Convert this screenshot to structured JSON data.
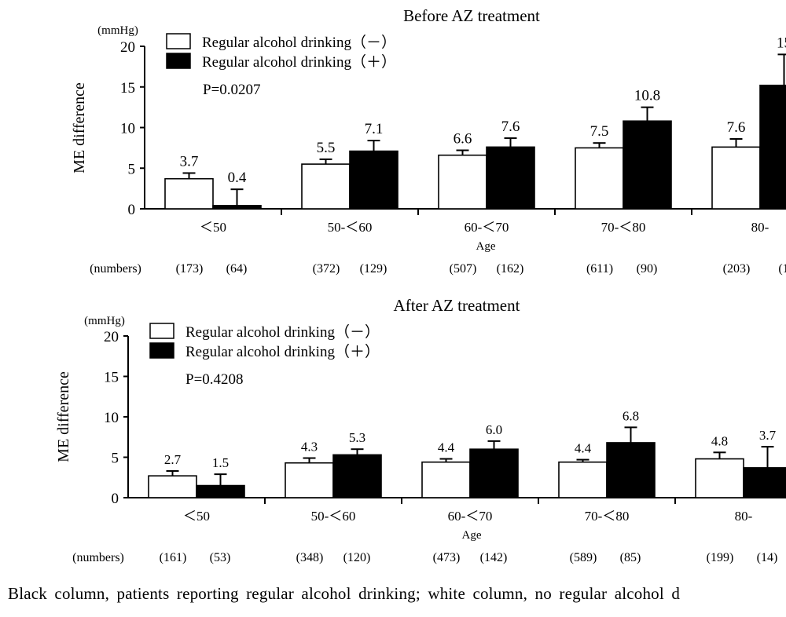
{
  "chart_data": [
    {
      "type": "bar",
      "title": "Before AZ treatment",
      "unit": "(mmHg)",
      "ylabel": "ME difference",
      "xlabel": "Age",
      "ylim": [
        0,
        20
      ],
      "yticks": [
        "0",
        "5",
        "10",
        "15",
        "20"
      ],
      "categories": [
        "＜50",
        "50-＜60",
        "60-＜70",
        "70-＜80",
        "80-"
      ],
      "series": [
        {
          "name": "Regular alcohol drinking（－）",
          "color": "#ffffff",
          "values": [
            3.7,
            5.5,
            6.6,
            7.5,
            7.6
          ],
          "labels": [
            "3.7",
            "5.5",
            "6.6",
            "7.5",
            "7.6"
          ],
          "errors": [
            0.7,
            0.6,
            0.6,
            0.6,
            1.0
          ],
          "numbers": [
            "(173)",
            "(372)",
            "(507)",
            "(611)",
            "(203)"
          ]
        },
        {
          "name": "Regular alcohol drinking（＋）",
          "color": "#000000",
          "values": [
            0.4,
            7.1,
            7.6,
            10.8,
            15.2
          ],
          "labels": [
            "0.4",
            "7.1",
            "7.6",
            "10.8",
            "15"
          ],
          "errors": [
            2.0,
            1.3,
            1.1,
            1.7,
            3.8
          ],
          "numbers": [
            "(64)",
            "(129)",
            "(162)",
            "(90)",
            "(1"
          ]
        }
      ],
      "numbers_label": "(numbers)",
      "p_value": "P=0.0207"
    },
    {
      "type": "bar",
      "title": "After AZ treatment",
      "unit": "(mmHg)",
      "ylabel": "ME difference",
      "xlabel": "Age",
      "ylim": [
        0,
        20
      ],
      "yticks": [
        "0",
        "5",
        "10",
        "15",
        "20"
      ],
      "categories": [
        "＜50",
        "50-＜60",
        "60-＜70",
        "70-＜80",
        "80-"
      ],
      "series": [
        {
          "name": "Regular alcohol drinking（－）",
          "color": "#ffffff",
          "values": [
            2.7,
            4.3,
            4.4,
            4.4,
            4.8
          ],
          "labels": [
            "2.7",
            "4.3",
            "4.4",
            "4.4",
            "4.8"
          ],
          "errors": [
            0.6,
            0.6,
            0.4,
            0.3,
            0.8
          ],
          "numbers": [
            "(161)",
            "(348)",
            "(473)",
            "(589)",
            "(199)"
          ]
        },
        {
          "name": "Regular alcohol drinking（＋）",
          "color": "#000000",
          "values": [
            1.5,
            5.3,
            6.0,
            6.8,
            3.7
          ],
          "labels": [
            "1.5",
            "5.3",
            "6.0",
            "6.8",
            "3.7"
          ],
          "errors": [
            1.4,
            0.7,
            1.0,
            1.9,
            2.6
          ],
          "numbers": [
            "(53)",
            "(120)",
            "(142)",
            "(85)",
            "(14)"
          ]
        }
      ],
      "numbers_label": "(numbers)",
      "p_value": "P=0.4208"
    }
  ],
  "caption": "Black column, patients reporting regular alcohol drinking; white column, no regular alcohol d"
}
